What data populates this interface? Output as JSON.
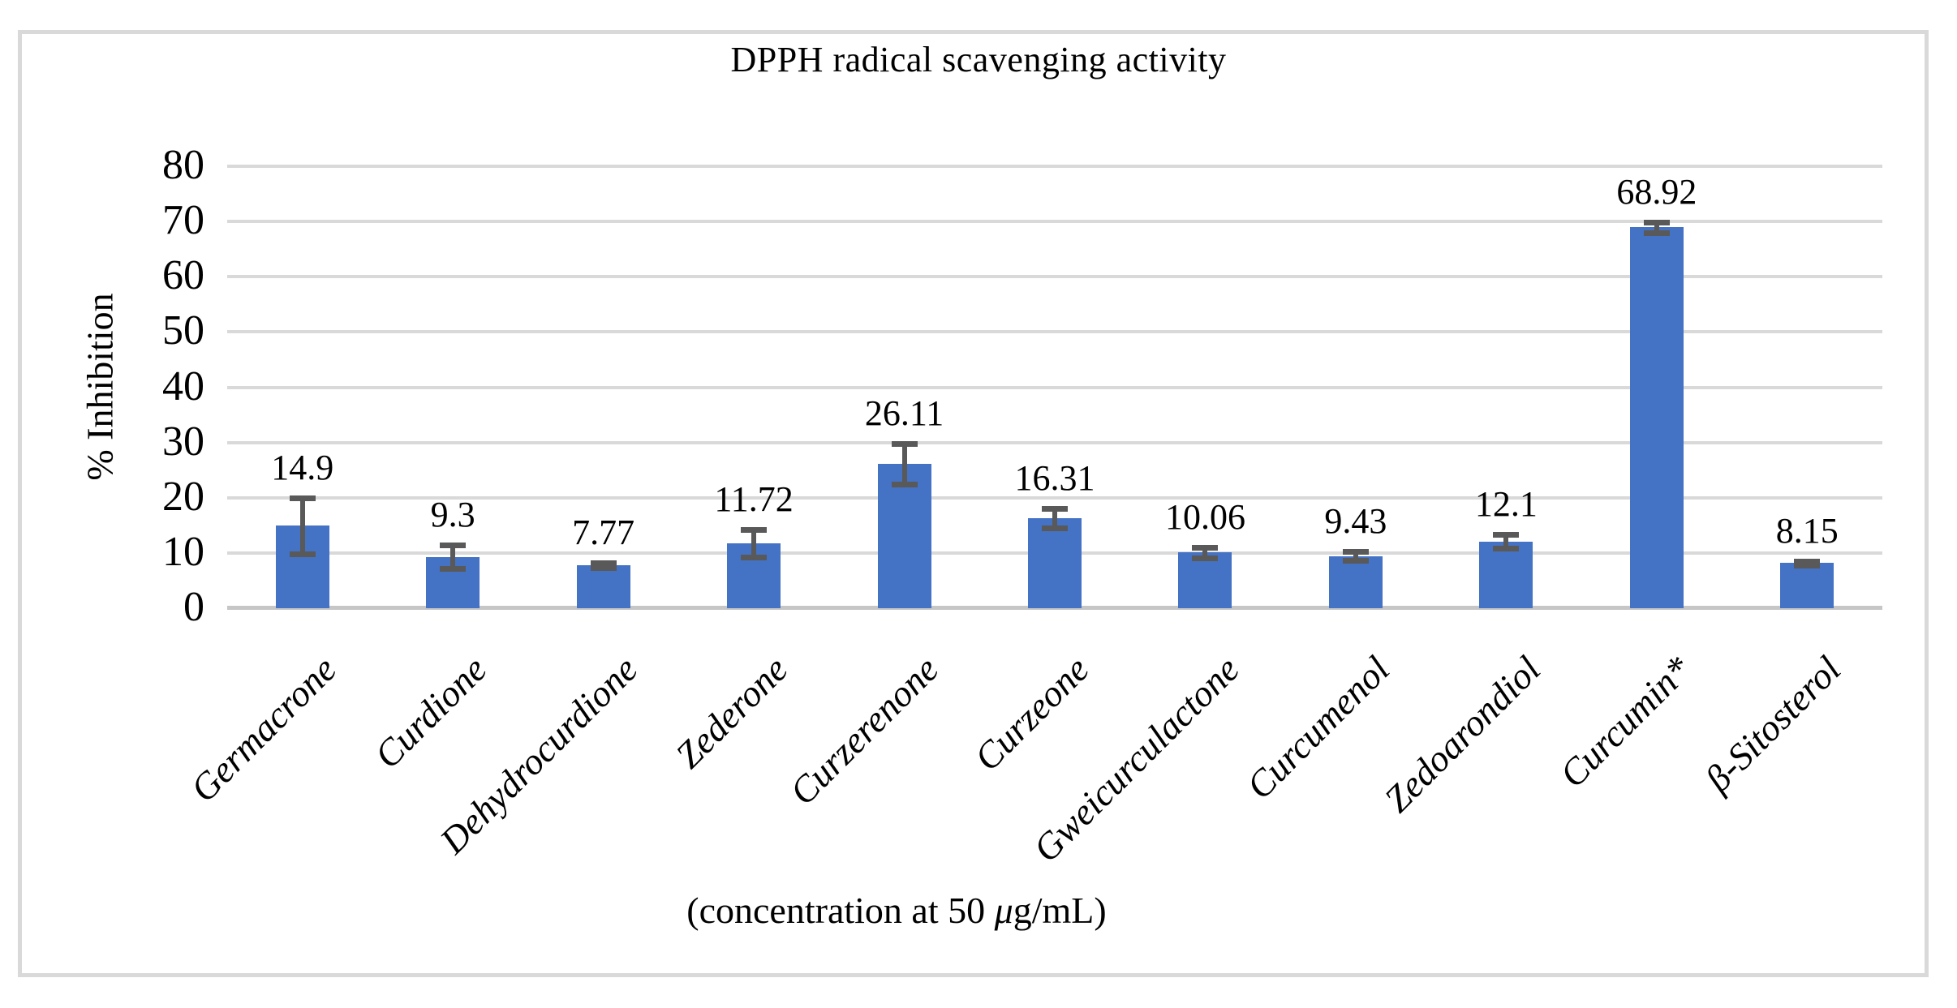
{
  "figure": {
    "x_axis": {
      "label_prefix": "(concentration at 50 ",
      "label_mu": "μ",
      "label_suffix": "g/mL)"
    }
  },
  "chart_data": {
    "type": "bar",
    "title": "DPPH radical scavenging activity",
    "xlabel": "(concentration at 50 μg/mL)",
    "ylabel": "% Inhibition",
    "ylim": [
      0,
      80
    ],
    "yticks": [
      0,
      10,
      20,
      30,
      40,
      50,
      60,
      70,
      80
    ],
    "grid": "horizontal",
    "legend": "none",
    "categories": [
      "Germacrone",
      "Curdione",
      "Dehydrocurdione",
      "Zederone",
      "Curzerenone",
      "Curzeone",
      "Gweicurculactone",
      "Curcumenol",
      "Zedoarondiol",
      "Curcumin*",
      "β-Sitosterol"
    ],
    "values": [
      14.9,
      9.3,
      7.77,
      11.72,
      26.11,
      16.31,
      10.06,
      9.43,
      12.1,
      68.92,
      8.15
    ],
    "data_labels": [
      "14.9",
      "9.3",
      "7.77",
      "11.72",
      "26.11",
      "16.31",
      "10.06",
      "9.43",
      "12.1",
      "68.92",
      "8.15"
    ],
    "error_bars": [
      5.0,
      2.1,
      0.4,
      2.5,
      3.7,
      1.8,
      0.9,
      0.8,
      1.3,
      0.9,
      0.35
    ]
  },
  "colors": {
    "bar": "#4472c4",
    "error": "#595959",
    "gridline": "#d9d9d9",
    "axis_line": "#c6c6c6",
    "border": "#d9d9d9",
    "text": "#000000"
  }
}
